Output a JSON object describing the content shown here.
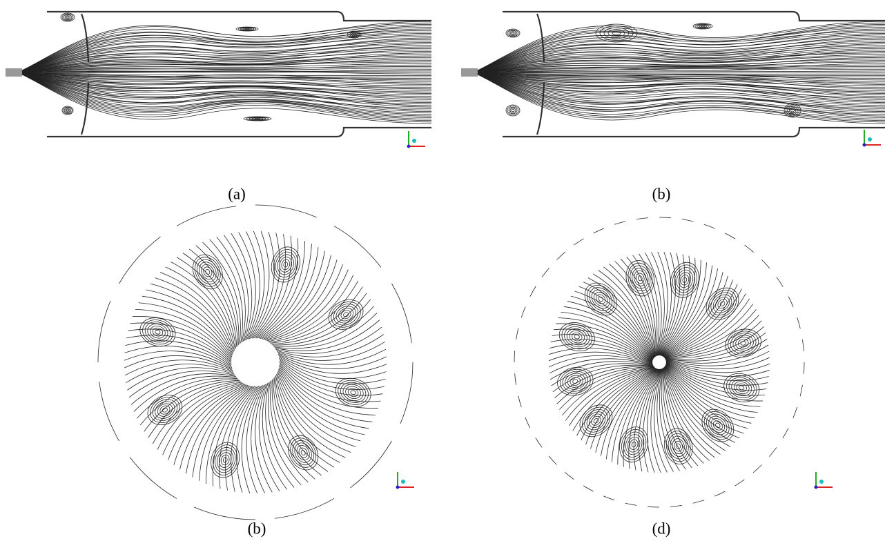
{
  "figure": {
    "panels": [
      {
        "caption": "(a)"
      },
      {
        "caption": "(b)"
      },
      {
        "caption": "(b)"
      },
      {
        "caption": "(d)"
      }
    ]
  }
}
